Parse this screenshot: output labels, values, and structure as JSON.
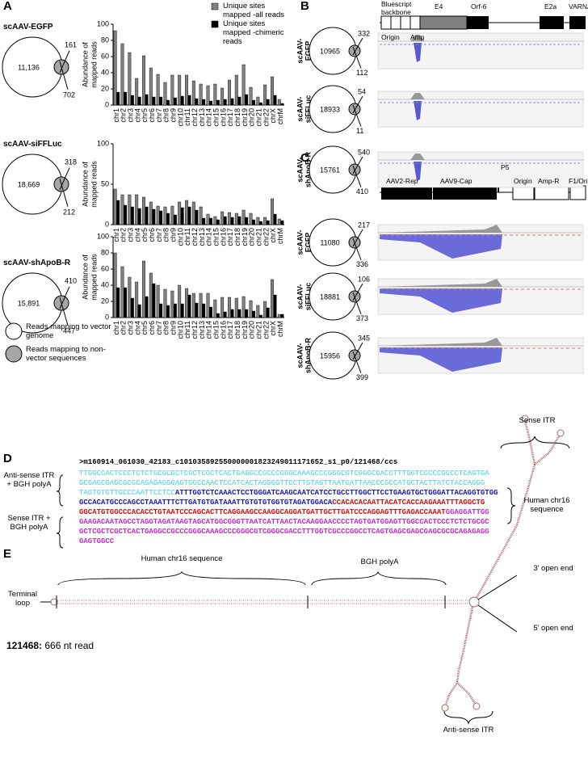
{
  "panel_labels": [
    "A",
    "B",
    "C",
    "D",
    "E"
  ],
  "chart_data": [
    {
      "type": "bar",
      "ylabel": [
        "Abundance of",
        "mapped reads"
      ],
      "categories": [
        "chr1",
        "chr2",
        "chr3",
        "chr4",
        "chr5",
        "chr6",
        "chr7",
        "chr8",
        "chr9",
        "chr10",
        "chr11",
        "chr12",
        "chr13",
        "chr14",
        "chr15",
        "chr16",
        "chr17",
        "chr18",
        "chr19",
        "chr20",
        "chr21",
        "chr22",
        "chrX",
        "chrM"
      ],
      "series": [
        {
          "name": "Unique sites mapped -all reads",
          "color": "#808080",
          "values": [
            92,
            76,
            65,
            33,
            61,
            46,
            38,
            28,
            37,
            37,
            37,
            30,
            26,
            24,
            26,
            21,
            31,
            37,
            50,
            22,
            10,
            25,
            35,
            7
          ]
        },
        {
          "name": "Unique sites mapped -chimeric reads",
          "color": "#000000",
          "values": [
            16,
            16,
            12,
            10,
            13,
            10,
            10,
            6,
            9,
            11,
            12,
            8,
            7,
            5,
            6,
            7,
            8,
            10,
            13,
            6,
            3,
            7,
            12,
            2
          ]
        }
      ],
      "ylim": [
        0,
        100
      ],
      "yticks": [
        0,
        20,
        40,
        60,
        80,
        100
      ]
    },
    {
      "type": "bar",
      "ylabel": [
        "Abundance of",
        "mapped reads"
      ],
      "categories": [
        "chr1",
        "chr2",
        "chr3",
        "chr4",
        "chr5",
        "chr6",
        "chr7",
        "chr8",
        "chr9",
        "chr10",
        "chr11",
        "chr12",
        "chr13",
        "chr14",
        "chr15",
        "chr16",
        "chr17",
        "chr18",
        "chr19",
        "chr20",
        "chr21",
        "chr22",
        "chrX",
        "chrM"
      ],
      "series": [
        {
          "color": "#808080",
          "values": [
            44,
            37,
            37,
            37,
            34,
            28,
            23,
            22,
            23,
            28,
            30,
            28,
            22,
            13,
            10,
            16,
            15,
            14,
            18,
            14,
            9,
            9,
            32,
            7
          ]
        },
        {
          "color": "#000000",
          "values": [
            30,
            24,
            22,
            20,
            22,
            19,
            17,
            14,
            12,
            21,
            22,
            18,
            8,
            8,
            6,
            10,
            9,
            10,
            9,
            6,
            4,
            5,
            13,
            5
          ]
        }
      ],
      "ylim": [
        0,
        100
      ],
      "yticks": [
        0,
        50,
        100
      ]
    },
    {
      "type": "bar",
      "ylabel": [
        "Abundance of",
        "mapped reads"
      ],
      "categories": [
        "chr1",
        "chr2",
        "chr3",
        "chr4",
        "chr5",
        "chr6",
        "chr7",
        "chr8",
        "chr9",
        "chr10",
        "chr11",
        "chr12",
        "chr13",
        "chr14",
        "chr15",
        "chr16",
        "chr17",
        "chr18",
        "chr19",
        "chr20",
        "chr21",
        "chr22",
        "chrX",
        "chrM"
      ],
      "series": [
        {
          "color": "#808080",
          "values": [
            80,
            63,
            50,
            44,
            70,
            55,
            40,
            35,
            33,
            40,
            36,
            30,
            30,
            30,
            22,
            25,
            25,
            24,
            26,
            21,
            15,
            20,
            47,
            4
          ]
        },
        {
          "color": "#000000",
          "values": [
            37,
            37,
            24,
            16,
            26,
            42,
            17,
            15,
            17,
            17,
            28,
            18,
            17,
            13,
            5,
            7,
            10,
            10,
            10,
            8,
            3,
            12,
            28,
            4
          ]
        }
      ],
      "ylim": [
        0,
        100
      ],
      "yticks": [
        0,
        20,
        40,
        60,
        80,
        100
      ]
    }
  ],
  "panel_a": {
    "venns": [
      {
        "title": "scAAV-EGFP",
        "values": [
          11136,
          161,
          702
        ],
        "value_labels": [
          "11,136",
          "161",
          "702"
        ]
      },
      {
        "title": "scAAV-siFFLuc",
        "values": [
          18669,
          318,
          212
        ],
        "value_labels": [
          "18,669",
          "318",
          "212"
        ]
      },
      {
        "title": "scAAV-shApoB-R",
        "values": [
          15891,
          410,
          447
        ],
        "value_labels": [
          "15,891",
          "410",
          "447"
        ]
      }
    ],
    "legend": [
      "Reads mapping to vector genome",
      "Reads mapping to non-vector sequences"
    ]
  },
  "panel_b": {
    "map_labels": [
      "Bluescript backbone",
      "Origin",
      "Amp",
      "E4",
      "Orf-6",
      "E2a",
      "VARNA"
    ],
    "venns": [
      {
        "title": [
          "scAAV-",
          "EGFP"
        ],
        "values": [
          10965,
          332,
          112
        ]
      },
      {
        "title": [
          "scAAV-",
          "siFFLuc"
        ],
        "values": [
          18933,
          54,
          11
        ]
      },
      {
        "title": [
          "scAAV-",
          "shApoB-R"
        ],
        "values": [
          15761,
          540,
          410
        ]
      }
    ]
  },
  "panel_c": {
    "map_labels": [
      "AAV2-Rep",
      "AAV9-Cap",
      "P5",
      "Origin",
      "Amp-R",
      "F1/Ori"
    ],
    "venns": [
      {
        "title": [
          "scAAV-",
          "EGFP"
        ],
        "values": [
          11080,
          217,
          336
        ]
      },
      {
        "title": [
          "scAAV-",
          "siFFLuc"
        ],
        "values": [
          18881,
          106,
          373
        ]
      },
      {
        "title": [
          "scAAV-",
          "shApoB-R"
        ],
        "values": [
          15956,
          345,
          399
        ]
      }
    ]
  },
  "panel_d": {
    "left_labels": [
      "Anti-sense ITR + BGH polyA",
      "Sense ITR + BGH polyA"
    ],
    "right_label": "Human chr16 sequence",
    "header": ">m160914_061030_42183_c101035892550000001823249011171652_s1_p0/121468/ccs",
    "lines": [
      [
        {
          "text": "TTGGCCACTCCCTCTCTGCGCGCTCGCTCGCTCACTGAGGCCGCCCGGGCAAAGCCCGGGCGTCGGGCGACCTTTGGTCGCCCGGCCTCAGTGA",
          "color": "#3fd0e0"
        }
      ],
      [
        {
          "text": "GCGAGCGAGCGCGCAGAGAGGGAGTGGCCAACTCCATCACTAGGGGTTCCTTGTAGTTAATGATTAACCCGCCATGCTACTTATCTACCAGGG",
          "color": "#3fd0e0"
        }
      ],
      [
        {
          "text": "TAGTGTGTTGCCCAATTCCTCC",
          "color": "#3fd0e0"
        },
        {
          "text": "ATTTGGTCTCAAACTCCTGGGATCAAGCAATCATCCTGCCTTGGCTTCCTGAAGTGCTGGGATTACAGGTGTGG",
          "color": "#1a1aa8"
        }
      ],
      [
        {
          "text": "GCCACATGCCCAGCCTAAATTTCTTGATGTGATAAATTGTGTGTGGTGTAGATGGACA",
          "color": "#1a1aa8"
        },
        {
          "text": "CCACACACAATTACATCACCAAGAAATTTAGGCTG",
          "color": "#cc1111"
        }
      ],
      [
        {
          "text": "GGCATGTGGCCCACACCTGTAATCCCAGCACTTCAGGAAGCCAAGGCAGGATGATTGCTTGATCCCAGGAGTTTGAGACCAAAT",
          "color": "#cc1111"
        },
        {
          "text": "GGAGGATTGG",
          "color": "#c030c0"
        }
      ],
      [
        {
          "text": "GAAGACAATAGCCTAGGTAGATAAGTAGCATGGCGGGTTAATCATTAACTACAAGGAACCCCTAGTGATGGAGTTGGCCACTCCCTCTCTGCGC",
          "color": "#c030c0"
        }
      ],
      [
        {
          "text": "GCTCGCTCGCTCACTGAGGCCGCCCGGGCAAAGCCCGGGCGTCGGGCGACCTTTGGTCGCCCGGCCTCAGTGAGCGAGCGAGCGCGCAGAGAGG",
          "color": "#c030c0"
        }
      ],
      [
        {
          "text": "GAGTGGCC",
          "color": "#c030c0"
        }
      ]
    ]
  },
  "panel_e": {
    "labels": [
      "Sense ITR",
      "Human chr16 sequence",
      "BGH polyA",
      "Terminal loop",
      "3' open end",
      "5' open end",
      "Anti-sense ITR"
    ],
    "read_id": "121468:",
    "read_length": " 666 nt read"
  }
}
